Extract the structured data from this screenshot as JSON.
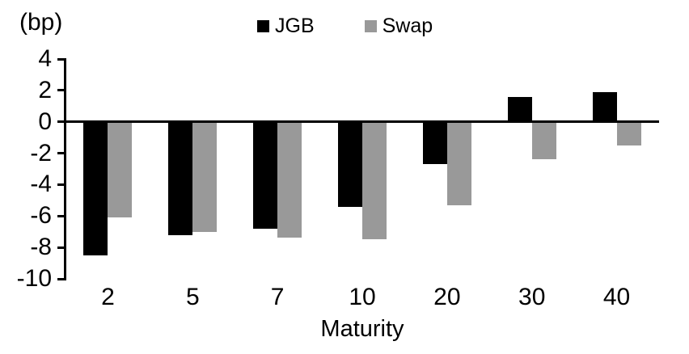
{
  "chart_data": {
    "type": "bar",
    "title": "",
    "unit_label": "(bp)",
    "xlabel": "Maturity",
    "ylabel": "",
    "categories": [
      "2",
      "5",
      "7",
      "10",
      "20",
      "30",
      "40"
    ],
    "series": [
      {
        "name": "JGB",
        "color": "#000000",
        "values": [
          -8.5,
          -7.2,
          -6.8,
          -5.4,
          -2.7,
          1.6,
          1.9
        ]
      },
      {
        "name": "Swap",
        "color": "#999999",
        "values": [
          -6.1,
          -7.0,
          -7.4,
          -7.5,
          -5.3,
          -2.4,
          -1.5
        ]
      }
    ],
    "yticks": [
      4,
      2,
      0,
      -2,
      -4,
      -6,
      -8,
      -10
    ],
    "ylim": [
      -10,
      4
    ],
    "grid": false,
    "legend_position": "top-center"
  }
}
